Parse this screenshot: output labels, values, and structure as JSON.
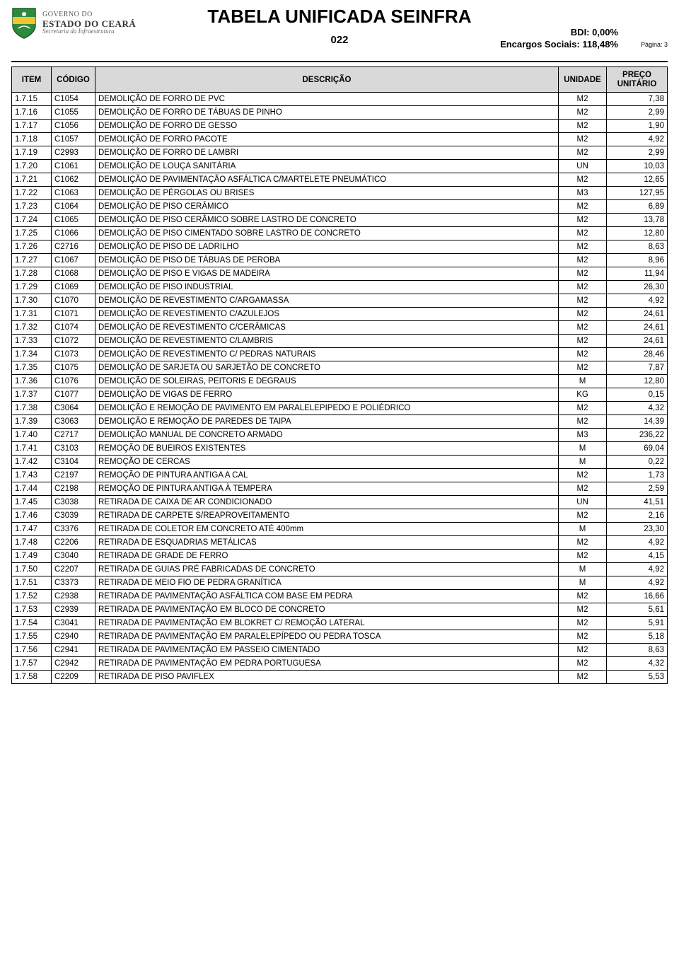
{
  "header": {
    "gov_line1": "GOVERNO DO",
    "gov_line2": "ESTADO DO CEARÁ",
    "gov_line3": "Secretaria da Infraestrutura",
    "title": "TABELA UNIFICADA SEINFRA",
    "code": "022",
    "bdi": "BDI: 0,00%",
    "encargos": "Encargos Sociais: 118,48%",
    "pagina": "Página: 3",
    "shield_colors": {
      "top": "#2e8b3d",
      "middle": "#f4c430",
      "bottom": "#2e8b3d",
      "outline": "#1a5c26"
    }
  },
  "table": {
    "columns": {
      "item": "ITEM",
      "codigo": "CÓDIGO",
      "descricao": "DESCRIÇÃO",
      "unidade": "UNIDADE",
      "preco_l1": "PREÇO",
      "preco_l2": "UNITÁRIO"
    },
    "header_bg": "#d9d9d9",
    "border_color": "#000000",
    "rows": [
      {
        "item": "1.7.15",
        "codigo": "C1054",
        "descricao": "DEMOLIÇÃO DE FORRO DE PVC",
        "unidade": "M2",
        "preco": "7,38"
      },
      {
        "item": "1.7.16",
        "codigo": "C1055",
        "descricao": "DEMOLIÇÃO DE FORRO DE TÁBUAS DE PINHO",
        "unidade": "M2",
        "preco": "2,99"
      },
      {
        "item": "1.7.17",
        "codigo": "C1056",
        "descricao": "DEMOLIÇÃO DE FORRO DE GESSO",
        "unidade": "M2",
        "preco": "1,90"
      },
      {
        "item": "1.7.18",
        "codigo": "C1057",
        "descricao": "DEMOLIÇÃO DE FORRO PACOTE",
        "unidade": "M2",
        "preco": "4,92"
      },
      {
        "item": "1.7.19",
        "codigo": "C2993",
        "descricao": "DEMOLIÇÃO DE FORRO DE LAMBRI",
        "unidade": "M2",
        "preco": "2,99"
      },
      {
        "item": "1.7.20",
        "codigo": "C1061",
        "descricao": "DEMOLIÇÃO DE LOUÇA SANITÁRIA",
        "unidade": "UN",
        "preco": "10,03"
      },
      {
        "item": "1.7.21",
        "codigo": "C1062",
        "descricao": "DEMOLIÇÃO DE PAVIMENTAÇÃO ASFÁLTICA C/MARTELETE PNEUMÁTICO",
        "unidade": "M2",
        "preco": "12,65"
      },
      {
        "item": "1.7.22",
        "codigo": "C1063",
        "descricao": "DEMOLIÇÃO DE PÉRGOLAS OU BRISES",
        "unidade": "M3",
        "preco": "127,95"
      },
      {
        "item": "1.7.23",
        "codigo": "C1064",
        "descricao": "DEMOLIÇÃO DE PISO CERÂMICO",
        "unidade": "M2",
        "preco": "6,89"
      },
      {
        "item": "1.7.24",
        "codigo": "C1065",
        "descricao": "DEMOLIÇÃO DE PISO CERÂMICO SOBRE LASTRO DE CONCRETO",
        "unidade": "M2",
        "preco": "13,78"
      },
      {
        "item": "1.7.25",
        "codigo": "C1066",
        "descricao": "DEMOLIÇÃO DE PISO CIMENTADO SOBRE LASTRO DE CONCRETO",
        "unidade": "M2",
        "preco": "12,80"
      },
      {
        "item": "1.7.26",
        "codigo": "C2716",
        "descricao": "DEMOLIÇÃO DE PISO DE LADRILHO",
        "unidade": "M2",
        "preco": "8,63"
      },
      {
        "item": "1.7.27",
        "codigo": "C1067",
        "descricao": "DEMOLIÇÃO DE PISO DE TÁBUAS DE PEROBA",
        "unidade": "M2",
        "preco": "8,96"
      },
      {
        "item": "1.7.28",
        "codigo": "C1068",
        "descricao": "DEMOLIÇÃO DE PISO E VIGAS DE MADEIRA",
        "unidade": "M2",
        "preco": "11,94"
      },
      {
        "item": "1.7.29",
        "codigo": "C1069",
        "descricao": "DEMOLIÇÃO DE PISO INDUSTRIAL",
        "unidade": "M2",
        "preco": "26,30"
      },
      {
        "item": "1.7.30",
        "codigo": "C1070",
        "descricao": "DEMOLIÇÃO DE REVESTIMENTO C/ARGAMASSA",
        "unidade": "M2",
        "preco": "4,92"
      },
      {
        "item": "1.7.31",
        "codigo": "C1071",
        "descricao": "DEMOLIÇÃO DE REVESTIMENTO C/AZULEJOS",
        "unidade": "M2",
        "preco": "24,61"
      },
      {
        "item": "1.7.32",
        "codigo": "C1074",
        "descricao": "DEMOLIÇÃO DE REVESTIMENTO C/CERÂMICAS",
        "unidade": "M2",
        "preco": "24,61"
      },
      {
        "item": "1.7.33",
        "codigo": "C1072",
        "descricao": "DEMOLIÇÃO DE REVESTIMENTO C/LAMBRIS",
        "unidade": "M2",
        "preco": "24,61"
      },
      {
        "item": "1.7.34",
        "codigo": "C1073",
        "descricao": "DEMOLIÇÃO DE REVESTIMENTO C/ PEDRAS NATURAIS",
        "unidade": "M2",
        "preco": "28,46"
      },
      {
        "item": "1.7.35",
        "codigo": "C1075",
        "descricao": "DEMOLIÇÃO DE SARJETA OU SARJETÃO DE CONCRETO",
        "unidade": "M2",
        "preco": "7,87"
      },
      {
        "item": "1.7.36",
        "codigo": "C1076",
        "descricao": "DEMOLIÇÃO DE SOLEIRAS, PEITORIS E DEGRAUS",
        "unidade": "M",
        "preco": "12,80"
      },
      {
        "item": "1.7.37",
        "codigo": "C1077",
        "descricao": "DEMOLIÇÃO DE VIGAS DE FERRO",
        "unidade": "KG",
        "preco": "0,15"
      },
      {
        "item": "1.7.38",
        "codigo": "C3064",
        "descricao": "DEMOLIÇÃO E REMOÇÃO DE PAVIMENTO EM PARALELEPIPEDO E POLIÉDRICO",
        "unidade": "M2",
        "preco": "4,32"
      },
      {
        "item": "1.7.39",
        "codigo": "C3063",
        "descricao": "DEMOLIÇÃO E REMOÇÃO DE PAREDES DE TAIPA",
        "unidade": "M2",
        "preco": "14,39"
      },
      {
        "item": "1.7.40",
        "codigo": "C2717",
        "descricao": "DEMOLIÇÃO MANUAL DE CONCRETO ARMADO",
        "unidade": "M3",
        "preco": "236,22"
      },
      {
        "item": "1.7.41",
        "codigo": "C3103",
        "descricao": "REMOÇÃO DE BUEIROS EXISTENTES",
        "unidade": "M",
        "preco": "69,04"
      },
      {
        "item": "1.7.42",
        "codigo": "C3104",
        "descricao": "REMOÇÃO DE CERCAS",
        "unidade": "M",
        "preco": "0,22"
      },
      {
        "item": "1.7.43",
        "codigo": "C2197",
        "descricao": "REMOÇÃO DE PINTURA ANTIGA A CAL",
        "unidade": "M2",
        "preco": "1,73"
      },
      {
        "item": "1.7.44",
        "codigo": "C2198",
        "descricao": "REMOÇÃO DE PINTURA ANTIGA À TEMPERA",
        "unidade": "M2",
        "preco": "2,59"
      },
      {
        "item": "1.7.45",
        "codigo": "C3038",
        "descricao": "RETIRADA DE CAIXA DE AR CONDICIONADO",
        "unidade": "UN",
        "preco": "41,51"
      },
      {
        "item": "1.7.46",
        "codigo": "C3039",
        "descricao": "RETIRADA DE CARPETE S/REAPROVEITAMENTO",
        "unidade": "M2",
        "preco": "2,16"
      },
      {
        "item": "1.7.47",
        "codigo": "C3376",
        "descricao": "RETIRADA DE COLETOR EM CONCRETO ATÉ 400mm",
        "unidade": "M",
        "preco": "23,30"
      },
      {
        "item": "1.7.48",
        "codigo": "C2206",
        "descricao": "RETIRADA DE ESQUADRIAS METÁLICAS",
        "unidade": "M2",
        "preco": "4,92"
      },
      {
        "item": "1.7.49",
        "codigo": "C3040",
        "descricao": "RETIRADA DE GRADE DE FERRO",
        "unidade": "M2",
        "preco": "4,15"
      },
      {
        "item": "1.7.50",
        "codigo": "C2207",
        "descricao": "RETIRADA DE GUIAS PRÉ FABRICADAS DE CONCRETO",
        "unidade": "M",
        "preco": "4,92"
      },
      {
        "item": "1.7.51",
        "codigo": "C3373",
        "descricao": "RETIRADA DE MEIO FIO DE PEDRA GRANÍTICA",
        "unidade": "M",
        "preco": "4,92"
      },
      {
        "item": "1.7.52",
        "codigo": "C2938",
        "descricao": "RETIRADA DE PAVIMENTAÇÃO ASFÁLTICA COM BASE EM PEDRA",
        "unidade": "M2",
        "preco": "16,66"
      },
      {
        "item": "1.7.53",
        "codigo": "C2939",
        "descricao": "RETIRADA DE PAVIMENTAÇÃO EM BLOCO DE CONCRETO",
        "unidade": "M2",
        "preco": "5,61"
      },
      {
        "item": "1.7.54",
        "codigo": "C3041",
        "descricao": "RETIRADA DE PAVIMENTAÇÃO EM BLOKRET C/ REMOÇÃO LATERAL",
        "unidade": "M2",
        "preco": "5,91"
      },
      {
        "item": "1.7.55",
        "codigo": "C2940",
        "descricao": "RETIRADA DE PAVIMENTAÇÃO EM PARALELEPÍPEDO OU PEDRA TOSCA",
        "unidade": "M2",
        "preco": "5,18"
      },
      {
        "item": "1.7.56",
        "codigo": "C2941",
        "descricao": "RETIRADA DE PAVIMENTAÇÃO EM PASSEIO CIMENTADO",
        "unidade": "M2",
        "preco": "8,63"
      },
      {
        "item": "1.7.57",
        "codigo": "C2942",
        "descricao": "RETIRADA DE PAVIMENTAÇÃO EM PEDRA PORTUGUESA",
        "unidade": "M2",
        "preco": "4,32"
      },
      {
        "item": "1.7.58",
        "codigo": "C2209",
        "descricao": "RETIRADA DE PISO PAVIFLEX",
        "unidade": "M2",
        "preco": "5,53"
      }
    ]
  }
}
